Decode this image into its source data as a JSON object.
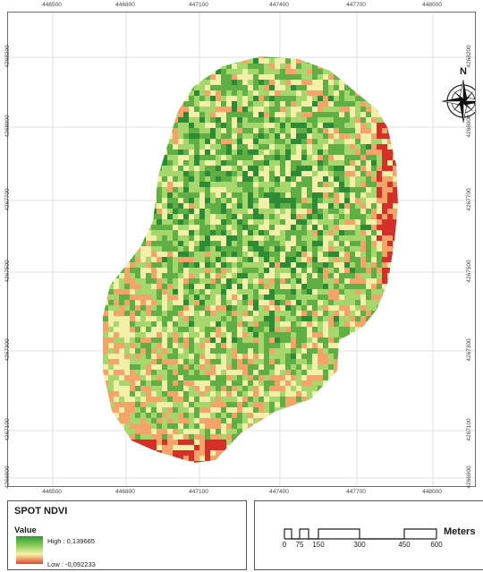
{
  "map": {
    "x_ticks": [
      "446500",
      "446800",
      "447100",
      "447400",
      "447700",
      "448000"
    ],
    "y_ticks": [
      "4268200",
      "4268000",
      "4267700",
      "4267500",
      "4267300",
      "4267100",
      "4266900"
    ],
    "north_label": "N",
    "raster_colors": {
      "dark_green": "#2e8b35",
      "green": "#5faf45",
      "light_green": "#a6d76c",
      "pale_yellow": "#f2efa8",
      "orange": "#f4a468",
      "red": "#d62f27"
    }
  },
  "legend": {
    "title": "SPOT NDVI",
    "subtitle": "Value",
    "high_label": "High : 0,139665",
    "low_label": "Low : -0,092233",
    "ramp_high_color": "#2e9a35",
    "ramp_low_color": "#e0452d"
  },
  "scale_bar": {
    "labels": [
      "0",
      "75",
      "150",
      "300",
      "450",
      "600"
    ],
    "unit": "Meters"
  }
}
